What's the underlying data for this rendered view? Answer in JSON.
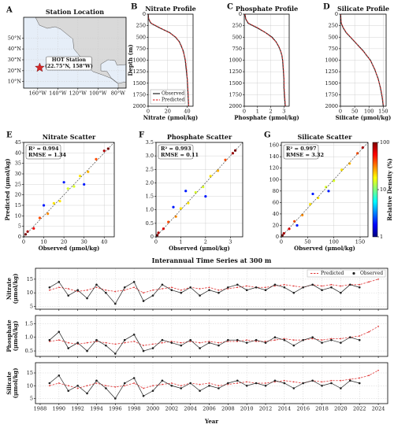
{
  "chart_data": [
    {
      "type": "map",
      "label": "A",
      "title": "Station Location",
      "xlim": [
        -174,
        -72
      ],
      "ylim": [
        4,
        69
      ],
      "xticks": [
        {
          "value": -160,
          "label": "160°W"
        },
        {
          "value": -140,
          "label": "140°W"
        },
        {
          "value": -120,
          "label": "120°W"
        },
        {
          "value": -100,
          "label": "100°W"
        },
        {
          "value": -80,
          "label": "80°W"
        }
      ],
      "yticks": [
        {
          "value": 10,
          "label": "10°N"
        },
        {
          "value": 20,
          "label": "20°N"
        },
        {
          "value": 30,
          "label": "30°N"
        },
        {
          "value": 40,
          "label": "40°N"
        },
        {
          "value": 50,
          "label": "50°N"
        }
      ],
      "grid": true,
      "station": {
        "lon": -158,
        "lat": 22.75,
        "color": "#d62728",
        "label": [
          "HOT Station",
          "(22.75°N, 158°W)"
        ]
      }
    },
    {
      "type": "profile",
      "label": "B",
      "title": "Nitrate Profile",
      "xlabel": "Nitrate (μmol/kg)",
      "ylabel": "Depth (m)",
      "y_inverted": true,
      "xlim": [
        0,
        46
      ],
      "xticks": [
        0,
        20,
        40
      ],
      "ylim": [
        0,
        2000
      ],
      "yticks": [
        0,
        250,
        500,
        750,
        1000,
        1250,
        1500,
        1750,
        2000
      ],
      "legend": "lower left",
      "depth": [
        0,
        50,
        100,
        150,
        200,
        300,
        400,
        500,
        600,
        700,
        800,
        900,
        1000,
        1200,
        1400,
        1600,
        1800,
        2000
      ],
      "series": [
        {
          "name": "Observed",
          "color": "#222222",
          "dash": false,
          "values": [
            0.1,
            0.2,
            0.5,
            1.5,
            3,
            12,
            22,
            28,
            32,
            34,
            36,
            37,
            38,
            39,
            40,
            40.5,
            41,
            41.5
          ]
        },
        {
          "name": "Predicted",
          "color": "#e03a3a",
          "dash": true,
          "values": [
            0.2,
            0.3,
            0.6,
            1.8,
            3.5,
            12.5,
            21.5,
            28.5,
            31.5,
            34.5,
            35.5,
            37.2,
            38.3,
            39.4,
            40.2,
            40.8,
            41.2,
            41.6
          ]
        }
      ]
    },
    {
      "type": "profile",
      "label": "C",
      "title": "Phosphate Profile",
      "xlabel": "Phosphate (μmol/kg)",
      "y_inverted": true,
      "xlim": [
        0,
        3.4
      ],
      "xticks": [
        0,
        1,
        2,
        3
      ],
      "ylim": [
        0,
        2000
      ],
      "yticks": [
        0,
        250,
        500,
        750,
        1000,
        1250,
        1500,
        1750,
        2000
      ],
      "depth": [
        0,
        50,
        100,
        150,
        200,
        300,
        400,
        500,
        600,
        700,
        800,
        900,
        1000,
        1200,
        1400,
        1600,
        1800,
        2000
      ],
      "series": [
        {
          "name": "Observed",
          "color": "#222222",
          "dash": false,
          "values": [
            0.05,
            0.08,
            0.1,
            0.2,
            0.3,
            1.0,
            1.6,
            2.1,
            2.4,
            2.6,
            2.75,
            2.85,
            2.9,
            2.95,
            3.0,
            3.0,
            3.05,
            3.1
          ]
        },
        {
          "name": "Predicted",
          "color": "#e03a3a",
          "dash": true,
          "values": [
            0.06,
            0.09,
            0.12,
            0.22,
            0.35,
            1.05,
            1.6,
            2.05,
            2.4,
            2.62,
            2.76,
            2.86,
            2.92,
            2.97,
            3.02,
            3.03,
            3.07,
            3.12
          ]
        }
      ]
    },
    {
      "type": "profile",
      "label": "D",
      "title": "Silicate Profile",
      "xlabel": "Silicate (μmol/kg)",
      "y_inverted": true,
      "xlim": [
        0,
        160
      ],
      "xticks": [
        0,
        50,
        100,
        150
      ],
      "ylim": [
        0,
        2000
      ],
      "yticks": [
        0,
        250,
        500,
        750,
        1000,
        1250,
        1500,
        1750,
        2000
      ],
      "depth": [
        0,
        50,
        100,
        150,
        200,
        300,
        400,
        500,
        600,
        700,
        800,
        900,
        1000,
        1200,
        1400,
        1600,
        1800,
        2000
      ],
      "series": [
        {
          "name": "Observed",
          "color": "#222222",
          "dash": false,
          "values": [
            1,
            1.2,
            1.5,
            2,
            3,
            10,
            20,
            35,
            50,
            65,
            80,
            92,
            105,
            120,
            132,
            140,
            146,
            150
          ]
        },
        {
          "name": "Predicted",
          "color": "#e03a3a",
          "dash": true,
          "values": [
            1.2,
            1.4,
            1.8,
            2.4,
            3.5,
            11,
            21,
            36,
            51,
            64,
            79,
            93,
            104,
            121,
            131,
            141,
            147,
            151
          ]
        }
      ]
    },
    {
      "type": "scatter",
      "label": "E",
      "title": "Nitrate Scatter",
      "xlabel": "Observed (μmol/kg)",
      "ylabel": "Predicted (μmol/kg)",
      "annotations": [
        "R² = 0.994",
        "RMSE = 1.34"
      ],
      "diagonal": true,
      "colormap": "jet",
      "density_lim": [
        1,
        100
      ],
      "xlim": [
        0,
        45
      ],
      "ylim": [
        0,
        45
      ],
      "xticks": [
        0,
        10,
        20,
        30,
        40
      ],
      "yticks": [
        0,
        5,
        10,
        15,
        20,
        25,
        30,
        35,
        40,
        45
      ],
      "x": [
        2,
        5,
        8,
        12,
        15,
        18,
        22,
        25,
        28,
        32,
        36,
        40,
        20,
        10,
        30,
        42,
        1
      ],
      "values": [
        2.5,
        4,
        9,
        11,
        16,
        17,
        23,
        24,
        29,
        31,
        37,
        41,
        26,
        15,
        25,
        42,
        1.2
      ],
      "density": [
        80,
        60,
        40,
        30,
        20,
        20,
        15,
        15,
        20,
        25,
        40,
        80,
        2,
        2,
        2,
        100,
        100
      ]
    },
    {
      "type": "scatter",
      "label": "F",
      "title": "Phosphate Scatter",
      "xlabel": "Observed (μmol/kg)",
      "annotations": [
        "R² = 0.993",
        "RMSE = 0.11"
      ],
      "diagonal": true,
      "colormap": "jet",
      "density_lim": [
        1,
        100
      ],
      "xlim": [
        0,
        3.5
      ],
      "ylim": [
        0,
        3.5
      ],
      "xticks": [
        0,
        1,
        2,
        3
      ],
      "yticks": [
        0,
        0.5,
        {
          "value": 1,
          "label": "1.0"
        },
        1.5,
        {
          "value": 2,
          "label": "2.0"
        },
        2.5,
        {
          "value": 3,
          "label": "3.0"
        },
        3.5
      ],
      "x": [
        0.1,
        0.3,
        0.5,
        0.8,
        1,
        1.3,
        1.6,
        1.9,
        2.2,
        2.5,
        2.8,
        3.1,
        1.2,
        2,
        0.7,
        3.2,
        0.05
      ],
      "values": [
        0.15,
        0.3,
        0.55,
        0.75,
        1.05,
        1.25,
        1.65,
        1.85,
        2.25,
        2.45,
        2.85,
        3.1,
        1.7,
        1.5,
        1.1,
        3.2,
        0.06
      ],
      "density": [
        80,
        60,
        40,
        30,
        20,
        20,
        15,
        15,
        20,
        25,
        40,
        80,
        2,
        2,
        2,
        100,
        100
      ]
    },
    {
      "type": "scatter",
      "label": "G",
      "title": "Silicate Scatter",
      "xlabel": "Observed (μmol/kg)",
      "annotations": [
        "R² = 0.997",
        "RMSE = 3.32"
      ],
      "diagonal": true,
      "colormap": "jet",
      "density_lim": [
        1,
        100
      ],
      "xlim": [
        0,
        165
      ],
      "ylim": [
        0,
        165
      ],
      "xticks": [
        0,
        50,
        100,
        150
      ],
      "yticks": [
        0,
        20,
        40,
        60,
        80,
        100,
        120,
        140,
        160
      ],
      "x": [
        5,
        15,
        25,
        40,
        55,
        70,
        85,
        100,
        115,
        130,
        145,
        155,
        60,
        90,
        30,
        2
      ],
      "values": [
        6,
        14,
        27,
        38,
        57,
        68,
        87,
        98,
        117,
        128,
        146,
        156,
        75,
        80,
        20,
        2.5
      ],
      "density": [
        80,
        60,
        40,
        30,
        20,
        20,
        15,
        15,
        20,
        25,
        40,
        80,
        2,
        2,
        2,
        100
      ],
      "colorbar": {
        "label": "Relative Density (%)",
        "scale": "log",
        "lim": [
          1,
          100
        ],
        "ticks": [
          1,
          10,
          100
        ]
      }
    },
    {
      "type": "line",
      "title": "Interannual Time Series at 300 m",
      "xlabel": "Year",
      "legend": "upper right",
      "grid": true,
      "xlim": [
        1987.5,
        2025
      ],
      "xticks": [
        1988,
        1990,
        1992,
        1994,
        1996,
        1998,
        2000,
        2002,
        2004,
        2006,
        2008,
        2010,
        2012,
        2014,
        2016,
        2018,
        2020,
        2022,
        2024
      ],
      "x": [
        1989,
        1990,
        1991,
        1992,
        1993,
        1994,
        1995,
        1996,
        1997,
        1998,
        1999,
        2000,
        2001,
        2002,
        2003,
        2004,
        2005,
        2006,
        2007,
        2008,
        2009,
        2010,
        2011,
        2012,
        2013,
        2014,
        2015,
        2016,
        2017,
        2018,
        2019,
        2020,
        2021,
        2022,
        2023,
        2024
      ],
      "panels": [
        {
          "ylabel": [
            "Nitrate",
            "(μmol/kg)"
          ],
          "ylim": [
            4,
            19
          ],
          "yticks": [
            5,
            10,
            15
          ],
          "series": [
            {
              "name": "Predicted",
              "color": "#e03a3a",
              "dash": true,
              "values": [
                11,
                12,
                11.5,
                10.5,
                11,
                12,
                11,
                10.5,
                11,
                12,
                10,
                11,
                11.5,
                12,
                11,
                12,
                11.5,
                12,
                11,
                11.5,
                12,
                12.5,
                12,
                12,
                12.5,
                13,
                12.5,
                12,
                13,
                12.5,
                13,
                12.5,
                13,
                13,
                14,
                15
              ]
            },
            {
              "name": "Observed",
              "color": "#222222",
              "dash": false,
              "values": [
                12,
                14,
                9,
                11,
                8,
                13,
                10,
                6,
                12,
                14,
                7,
                9,
                13,
                11,
                10,
                12,
                9,
                11,
                10,
                12,
                13,
                11,
                12,
                11,
                13,
                12,
                10,
                12,
                13,
                11,
                12,
                10,
                13,
                12,
                null,
                null
              ]
            }
          ]
        },
        {
          "ylabel": [
            "Phosphate",
            "(μmol/kg)"
          ],
          "ylim": [
            0.3,
            1.8
          ],
          "yticks": [
            0.5,
            {
              "value": 1,
              "label": "1.0"
            },
            1.5
          ],
          "series": [
            {
              "name": "Predicted",
              "color": "#e03a3a",
              "dash": true,
              "values": [
                0.85,
                0.9,
                0.8,
                0.75,
                0.8,
                0.85,
                0.8,
                0.75,
                0.8,
                0.85,
                0.7,
                0.75,
                0.8,
                0.85,
                0.8,
                0.85,
                0.8,
                0.85,
                0.8,
                0.85,
                0.85,
                0.9,
                0.85,
                0.85,
                0.9,
                0.95,
                0.9,
                0.9,
                0.95,
                0.9,
                0.95,
                0.95,
                1.0,
                1.05,
                1.2,
                1.4
              ]
            },
            {
              "name": "Observed",
              "color": "#222222",
              "dash": false,
              "values": [
                0.9,
                1.2,
                0.6,
                0.8,
                0.5,
                0.9,
                0.7,
                0.4,
                0.9,
                1.1,
                0.5,
                0.6,
                0.9,
                0.8,
                0.7,
                0.9,
                0.6,
                0.8,
                0.7,
                0.9,
                0.9,
                0.8,
                0.9,
                0.8,
                1.0,
                0.9,
                0.7,
                0.9,
                1.0,
                0.8,
                0.9,
                0.8,
                1.0,
                0.9,
                null,
                null
              ]
            }
          ]
        },
        {
          "ylabel": [
            "Silicate",
            "(μmol/kg)"
          ],
          "ylim": [
            3,
            19
          ],
          "yticks": [
            5,
            10,
            15
          ],
          "series": [
            {
              "name": "Predicted",
              "color": "#e03a3a",
              "dash": true,
              "values": [
                10,
                11,
                10,
                9,
                10,
                11,
                10,
                9.5,
                10,
                11,
                9,
                10,
                10.5,
                11,
                10,
                11,
                10.5,
                11,
                10,
                10.5,
                11,
                11.5,
                11,
                11,
                11.5,
                12,
                11.5,
                11,
                12,
                11.5,
                12,
                12,
                12.5,
                13,
                14,
                16
              ]
            },
            {
              "name": "Observed",
              "color": "#222222",
              "dash": false,
              "values": [
                11,
                14,
                8,
                10,
                7,
                12,
                9,
                5,
                11,
                13,
                6,
                8,
                12,
                10,
                9,
                11,
                8,
                10,
                9,
                11,
                12,
                10,
                11,
                10,
                12,
                11,
                9,
                11,
                12,
                10,
                11,
                9,
                12,
                11,
                null,
                null
              ]
            }
          ]
        }
      ]
    }
  ]
}
